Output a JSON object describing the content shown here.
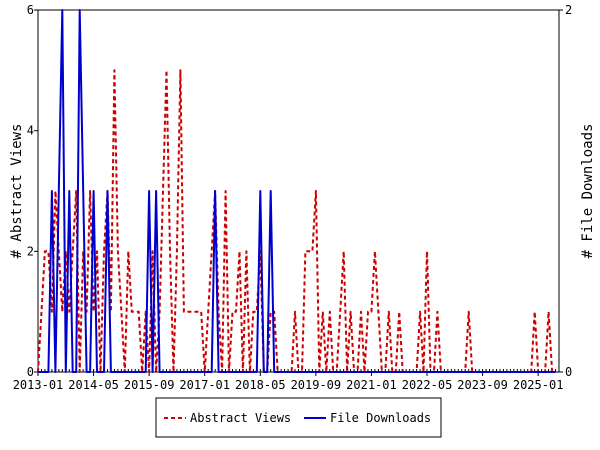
{
  "chart_data": {
    "type": "line",
    "title": "",
    "xlabel": "",
    "ylabel_left": "# Abstract Views",
    "ylabel_right": "# File Downloads",
    "x_tick_labels": [
      "2013-01",
      "2014-05",
      "2015-09",
      "2017-01",
      "2018-05",
      "2019-09",
      "2021-01",
      "2022-05",
      "2023-09",
      "2025-01"
    ],
    "x_range": [
      "2013-01",
      "2025-07"
    ],
    "y_left_range": [
      0,
      6
    ],
    "y_left_ticks": [
      "0",
      "2",
      "4",
      "6"
    ],
    "y_right_range": [
      0,
      2
    ],
    "y_right_ticks": [
      "0",
      "2"
    ],
    "legend_position": "bottom",
    "colors": {
      "abstract_views": "#cc0000",
      "file_downloads": "#0000cc"
    },
    "series": [
      {
        "name": "Abstract Views",
        "axis": "left",
        "style": "dashed",
        "points": [
          [
            "2013-01",
            0
          ],
          [
            "2013-02",
            1
          ],
          [
            "2013-03",
            2
          ],
          [
            "2013-04",
            2
          ],
          [
            "2013-05",
            1
          ],
          [
            "2013-06",
            3
          ],
          [
            "2013-07",
            2
          ],
          [
            "2013-08",
            1
          ],
          [
            "2013-09",
            2
          ],
          [
            "2013-10",
            1
          ],
          [
            "2013-11",
            2
          ],
          [
            "2013-12",
            3
          ],
          [
            "2014-01",
            0
          ],
          [
            "2014-02",
            2
          ],
          [
            "2014-03",
            1
          ],
          [
            "2014-04",
            3
          ],
          [
            "2014-05",
            1
          ],
          [
            "2014-06",
            2
          ],
          [
            "2014-07",
            0
          ],
          [
            "2014-08",
            2
          ],
          [
            "2014-09",
            3
          ],
          [
            "2014-10",
            1
          ],
          [
            "2014-11",
            5
          ],
          [
            "2014-12",
            2
          ],
          [
            "2015-01",
            1
          ],
          [
            "2015-02",
            0
          ],
          [
            "2015-03",
            2
          ],
          [
            "2015-04",
            1
          ],
          [
            "2015-05",
            1
          ],
          [
            "2015-06",
            1
          ],
          [
            "2015-07",
            0
          ],
          [
            "2015-08",
            1
          ],
          [
            "2015-09",
            0
          ],
          [
            "2015-10",
            2
          ],
          [
            "2015-11",
            0
          ],
          [
            "2015-12",
            1
          ],
          [
            "2016-01",
            3
          ],
          [
            "2016-02",
            5
          ],
          [
            "2016-03",
            2
          ],
          [
            "2016-04",
            0
          ],
          [
            "2016-05",
            2
          ],
          [
            "2016-06",
            5
          ],
          [
            "2016-07",
            1
          ],
          [
            "2016-08",
            1
          ],
          [
            "2016-09",
            1
          ],
          [
            "2016-10",
            1
          ],
          [
            "2016-11",
            1
          ],
          [
            "2016-12",
            1
          ],
          [
            "2017-01",
            0
          ],
          [
            "2017-02",
            1
          ],
          [
            "2017-03",
            2
          ],
          [
            "2017-04",
            3
          ],
          [
            "2017-05",
            1
          ],
          [
            "2017-06",
            0
          ],
          [
            "2017-07",
            3
          ],
          [
            "2017-08",
            0
          ],
          [
            "2017-09",
            1
          ],
          [
            "2017-10",
            1
          ],
          [
            "2017-11",
            2
          ],
          [
            "2017-12",
            0
          ],
          [
            "2018-01",
            2
          ],
          [
            "2018-02",
            0
          ],
          [
            "2018-03",
            1
          ],
          [
            "2018-04",
            1
          ],
          [
            "2018-05",
            2
          ],
          [
            "2018-06",
            0
          ],
          [
            "2018-07",
            0
          ],
          [
            "2018-08",
            1
          ],
          [
            "2018-09",
            1
          ],
          [
            "2018-10",
            0
          ],
          [
            "2018-11",
            0
          ],
          [
            "2018-12",
            0
          ],
          [
            "2019-01",
            0
          ],
          [
            "2019-02",
            0
          ],
          [
            "2019-03",
            1
          ],
          [
            "2019-04",
            0
          ],
          [
            "2019-05",
            0
          ],
          [
            "2019-06",
            2
          ],
          [
            "2019-07",
            2
          ],
          [
            "2019-08",
            2
          ],
          [
            "2019-09",
            3
          ],
          [
            "2019-10",
            0
          ],
          [
            "2019-11",
            1
          ],
          [
            "2019-12",
            0
          ],
          [
            "2020-01",
            1
          ],
          [
            "2020-02",
            0
          ],
          [
            "2020-03",
            0
          ],
          [
            "2020-04",
            1
          ],
          [
            "2020-05",
            2
          ],
          [
            "2020-06",
            0
          ],
          [
            "2020-07",
            1
          ],
          [
            "2020-08",
            0
          ],
          [
            "2020-09",
            0
          ],
          [
            "2020-10",
            1
          ],
          [
            "2020-11",
            0
          ],
          [
            "2020-12",
            1
          ],
          [
            "2021-01",
            1
          ],
          [
            "2021-02",
            2
          ],
          [
            "2021-03",
            1
          ],
          [
            "2021-04",
            0
          ],
          [
            "2021-05",
            0
          ],
          [
            "2021-06",
            1
          ],
          [
            "2021-07",
            0
          ],
          [
            "2021-08",
            0
          ],
          [
            "2021-09",
            1
          ],
          [
            "2021-10",
            0
          ],
          [
            "2021-11",
            0
          ],
          [
            "2021-12",
            0
          ],
          [
            "2022-01",
            0
          ],
          [
            "2022-02",
            0
          ],
          [
            "2022-03",
            1
          ],
          [
            "2022-04",
            0
          ],
          [
            "2022-05",
            2
          ],
          [
            "2022-06",
            0
          ],
          [
            "2022-07",
            0
          ],
          [
            "2022-08",
            1
          ],
          [
            "2022-09",
            0
          ],
          [
            "2022-10",
            0
          ],
          [
            "2022-11",
            0
          ],
          [
            "2022-12",
            0
          ],
          [
            "2023-01",
            0
          ],
          [
            "2023-02",
            0
          ],
          [
            "2023-03",
            0
          ],
          [
            "2023-04",
            0
          ],
          [
            "2023-05",
            1
          ],
          [
            "2023-06",
            0
          ],
          [
            "2023-07",
            0
          ],
          [
            "2023-08",
            0
          ],
          [
            "2023-09",
            0
          ],
          [
            "2023-10",
            0
          ],
          [
            "2023-11",
            0
          ],
          [
            "2023-12",
            0
          ],
          [
            "2024-01",
            0
          ],
          [
            "2024-02",
            0
          ],
          [
            "2024-03",
            0
          ],
          [
            "2024-04",
            0
          ],
          [
            "2024-05",
            0
          ],
          [
            "2024-06",
            0
          ],
          [
            "2024-07",
            0
          ],
          [
            "2024-08",
            0
          ],
          [
            "2024-09",
            0
          ],
          [
            "2024-10",
            0
          ],
          [
            "2024-11",
            0
          ],
          [
            "2024-12",
            1
          ],
          [
            "2025-01",
            0
          ],
          [
            "2025-02",
            0
          ],
          [
            "2025-03",
            0
          ],
          [
            "2025-04",
            1
          ],
          [
            "2025-05",
            0
          ],
          [
            "2025-06",
            0
          ]
        ]
      },
      {
        "name": "File Downloads",
        "axis": "right",
        "style": "solid",
        "points": [
          [
            "2013-01",
            0
          ],
          [
            "2013-02",
            0
          ],
          [
            "2013-03",
            0
          ],
          [
            "2013-04",
            0
          ],
          [
            "2013-05",
            1
          ],
          [
            "2013-06",
            0
          ],
          [
            "2013-07",
            1
          ],
          [
            "2013-08",
            2
          ],
          [
            "2013-09",
            0
          ],
          [
            "2013-10",
            1
          ],
          [
            "2013-11",
            0
          ],
          [
            "2013-12",
            0
          ],
          [
            "2014-01",
            2
          ],
          [
            "2014-02",
            1
          ],
          [
            "2014-03",
            0
          ],
          [
            "2014-04",
            0
          ],
          [
            "2014-05",
            1
          ],
          [
            "2014-06",
            0
          ],
          [
            "2014-07",
            0
          ],
          [
            "2014-08",
            0
          ],
          [
            "2014-09",
            1
          ],
          [
            "2014-10",
            0
          ],
          [
            "2014-11",
            0
          ],
          [
            "2014-12",
            0
          ],
          [
            "2015-01",
            0
          ],
          [
            "2015-02",
            0
          ],
          [
            "2015-03",
            0
          ],
          [
            "2015-04",
            0
          ],
          [
            "2015-05",
            0
          ],
          [
            "2015-06",
            0
          ],
          [
            "2015-07",
            0
          ],
          [
            "2015-08",
            0
          ],
          [
            "2015-09",
            1
          ],
          [
            "2015-10",
            0
          ],
          [
            "2015-11",
            1
          ],
          [
            "2015-12",
            0
          ],
          [
            "2016-01",
            0
          ],
          [
            "2016-02",
            0
          ],
          [
            "2016-03",
            0
          ],
          [
            "2016-04",
            0
          ],
          [
            "2016-05",
            0
          ],
          [
            "2016-06",
            0
          ],
          [
            "2016-07",
            0
          ],
          [
            "2016-08",
            0
          ],
          [
            "2016-09",
            0
          ],
          [
            "2016-10",
            0
          ],
          [
            "2016-11",
            0
          ],
          [
            "2016-12",
            0
          ],
          [
            "2017-01",
            0
          ],
          [
            "2017-02",
            0
          ],
          [
            "2017-03",
            0
          ],
          [
            "2017-04",
            1
          ],
          [
            "2017-05",
            0
          ],
          [
            "2017-06",
            0
          ],
          [
            "2017-07",
            0
          ],
          [
            "2017-08",
            0
          ],
          [
            "2017-09",
            0
          ],
          [
            "2017-10",
            0
          ],
          [
            "2017-11",
            0
          ],
          [
            "2017-12",
            0
          ],
          [
            "2018-01",
            0
          ],
          [
            "2018-02",
            0
          ],
          [
            "2018-03",
            0
          ],
          [
            "2018-04",
            0
          ],
          [
            "2018-05",
            1
          ],
          [
            "2018-06",
            0
          ],
          [
            "2018-07",
            0
          ],
          [
            "2018-08",
            1
          ],
          [
            "2018-09",
            0
          ],
          [
            "2018-10",
            0
          ],
          [
            "2018-11",
            0
          ],
          [
            "2018-12",
            0
          ],
          [
            "2019-01",
            0
          ],
          [
            "2019-02",
            0
          ],
          [
            "2019-03",
            0
          ],
          [
            "2019-04",
            0
          ],
          [
            "2019-05",
            0
          ],
          [
            "2019-06",
            0
          ],
          [
            "2019-07",
            0
          ],
          [
            "2019-08",
            0
          ],
          [
            "2019-09",
            0
          ],
          [
            "2019-10",
            0
          ],
          [
            "2019-11",
            0
          ],
          [
            "2019-12",
            0
          ],
          [
            "2020-01",
            0
          ],
          [
            "2020-02",
            0
          ],
          [
            "2020-03",
            0
          ],
          [
            "2020-04",
            0
          ],
          [
            "2020-05",
            0
          ],
          [
            "2020-06",
            0
          ],
          [
            "2020-07",
            0
          ],
          [
            "2020-08",
            0
          ],
          [
            "2020-09",
            0
          ],
          [
            "2020-10",
            0
          ],
          [
            "2020-11",
            0
          ],
          [
            "2020-12",
            0
          ],
          [
            "2021-01",
            0
          ],
          [
            "2021-02",
            0
          ],
          [
            "2021-03",
            0
          ],
          [
            "2021-04",
            0
          ],
          [
            "2021-05",
            0
          ],
          [
            "2021-06",
            0
          ],
          [
            "2021-07",
            0
          ],
          [
            "2021-08",
            0
          ],
          [
            "2021-09",
            0
          ],
          [
            "2021-10",
            0
          ],
          [
            "2021-11",
            0
          ],
          [
            "2021-12",
            0
          ],
          [
            "2022-01",
            0
          ],
          [
            "2022-02",
            0
          ],
          [
            "2022-03",
            0
          ],
          [
            "2022-04",
            0
          ],
          [
            "2022-05",
            0
          ],
          [
            "2022-06",
            0
          ],
          [
            "2022-07",
            0
          ],
          [
            "2022-08",
            0
          ],
          [
            "2022-09",
            0
          ],
          [
            "2022-10",
            0
          ],
          [
            "2022-11",
            0
          ],
          [
            "2022-12",
            0
          ],
          [
            "2023-01",
            0
          ],
          [
            "2023-02",
            0
          ],
          [
            "2023-03",
            0
          ],
          [
            "2023-04",
            0
          ],
          [
            "2023-05",
            0
          ],
          [
            "2023-06",
            0
          ],
          [
            "2023-07",
            0
          ],
          [
            "2023-08",
            0
          ],
          [
            "2023-09",
            0
          ],
          [
            "2023-10",
            0
          ],
          [
            "2023-11",
            0
          ],
          [
            "2023-12",
            0
          ],
          [
            "2024-01",
            0
          ],
          [
            "2024-02",
            0
          ],
          [
            "2024-03",
            0
          ],
          [
            "2024-04",
            0
          ],
          [
            "2024-05",
            0
          ],
          [
            "2024-06",
            0
          ],
          [
            "2024-07",
            0
          ],
          [
            "2024-08",
            0
          ],
          [
            "2024-09",
            0
          ],
          [
            "2024-10",
            0
          ],
          [
            "2024-11",
            0
          ],
          [
            "2024-12",
            0
          ],
          [
            "2025-01",
            0
          ],
          [
            "2025-02",
            0
          ],
          [
            "2025-03",
            0
          ],
          [
            "2025-04",
            0
          ],
          [
            "2025-05",
            0
          ],
          [
            "2025-06",
            0
          ]
        ]
      }
    ]
  }
}
